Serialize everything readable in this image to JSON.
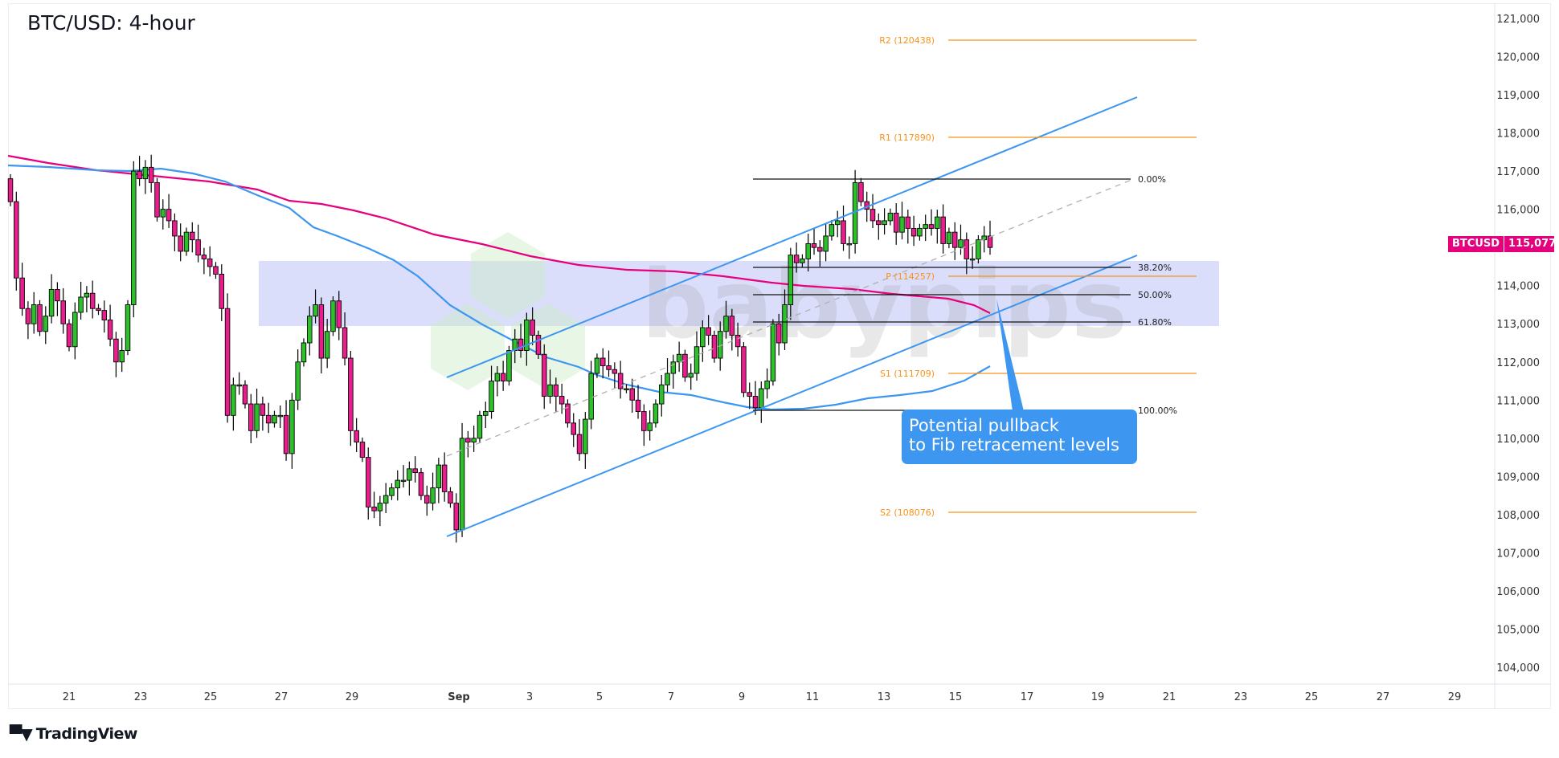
{
  "title": "BTC/USD: 4-hour",
  "symbol": "BTCUSD",
  "last_price": "115,077",
  "brand": "TradingView",
  "watermark": "babypips",
  "callout": {
    "line1": "Potential pullback",
    "line2": "to Fib retracement levels"
  },
  "colors": {
    "up": "#2ec02a",
    "down": "#e91e8c",
    "ma_fast": "#3d96f0",
    "ma_slow": "#e6007e",
    "pivot": "#f7931a",
    "zone": "#d9dcfb",
    "channel": "#3d96f0",
    "callout": "#3d96f0"
  },
  "chart_data": {
    "type": "candlestick",
    "title": "BTC/USD: 4-hour",
    "xlabel": "",
    "ylabel": "",
    "ylim": [
      103600,
      121400
    ],
    "y_ticks": [
      "121,000",
      "120,000",
      "119,000",
      "118,000",
      "117,000",
      "116,000",
      "114,000",
      "113,000",
      "112,000",
      "111,000",
      "110,000",
      "109,000",
      "108,000",
      "107,000",
      "106,000",
      "105,000",
      "104,000"
    ],
    "x_ticks": [
      "21",
      "23",
      "25",
      "27",
      "29",
      "Sep",
      "3",
      "5",
      "7",
      "9",
      "11",
      "13",
      "15",
      "17",
      "19",
      "21",
      "23",
      "25",
      "27",
      "29"
    ],
    "last_price": 115077,
    "pivots": [
      {
        "label": "R2 (120438)",
        "value": 120438
      },
      {
        "label": "R1 (117890)",
        "value": 117890
      },
      {
        "label": "P (114257)",
        "value": 114257
      },
      {
        "label": "S1 (111709)",
        "value": 111709
      },
      {
        "label": "S2 (108076)",
        "value": 108076
      }
    ],
    "fib_levels": [
      {
        "label": "0.00%",
        "value": 116780
      },
      {
        "label": "38.20%",
        "value": 114470
      },
      {
        "label": "50.00%",
        "value": 113780
      },
      {
        "label": "61.80%",
        "value": 113060
      },
      {
        "label": "100.00%",
        "value": 110780
      }
    ],
    "zone": {
      "top": 114620,
      "bottom": 112930
    },
    "annotation": "Potential pullback to Fib retracement levels",
    "ohlc_close_approx": [
      116200,
      114200,
      113400,
      113000,
      113500,
      112800,
      113200,
      113900,
      113600,
      113000,
      112400,
      113300,
      113700,
      113800,
      113400,
      113350,
      113100,
      112600,
      112000,
      112300,
      113500,
      117000,
      116800,
      117100,
      116700,
      115800,
      116000,
      115700,
      115300,
      114900,
      115400,
      115200,
      114800,
      114700,
      114500,
      114300,
      113400,
      110600,
      111400,
      111400,
      110900,
      110200,
      110900,
      110600,
      110400,
      110600,
      110600,
      109600,
      111000,
      112000,
      112500,
      113200,
      113500,
      112100,
      112800,
      113600,
      112900,
      112100,
      110200,
      109900,
      109500,
      108200,
      108100,
      108300,
      108500,
      108700,
      108900,
      108900,
      109200,
      109100,
      108500,
      108300,
      108700,
      109300,
      108600,
      108300,
      107600,
      110000,
      109900,
      110000,
      110600,
      110700,
      111500,
      111700,
      111500,
      112300,
      112600,
      112300,
      113100,
      112700,
      112200,
      111100,
      111400,
      111100,
      110900,
      110400,
      110100,
      109600,
      110500,
      111700,
      112100,
      111900,
      111800,
      111700,
      111300,
      111300,
      111000,
      110700,
      110200,
      110400,
      110900,
      111400,
      111700,
      112000,
      112200,
      111600,
      111700,
      112400,
      112900,
      112700,
      112100,
      112800,
      113200,
      112700,
      112400,
      111200,
      111100,
      110800,
      111300,
      111500,
      113000,
      112500,
      113500,
      114800,
      114600,
      114700,
      115100,
      115000,
      114900,
      115300,
      115600,
      115700,
      115100,
      115100,
      116700,
      116200,
      116000,
      115700,
      115600,
      115700,
      115900,
      115400,
      115800,
      115500,
      115300,
      115500,
      115600,
      115500,
      115800,
      115100,
      115400,
      115000,
      115200,
      114700,
      114700,
      115200,
      115300,
      115000
    ]
  }
}
